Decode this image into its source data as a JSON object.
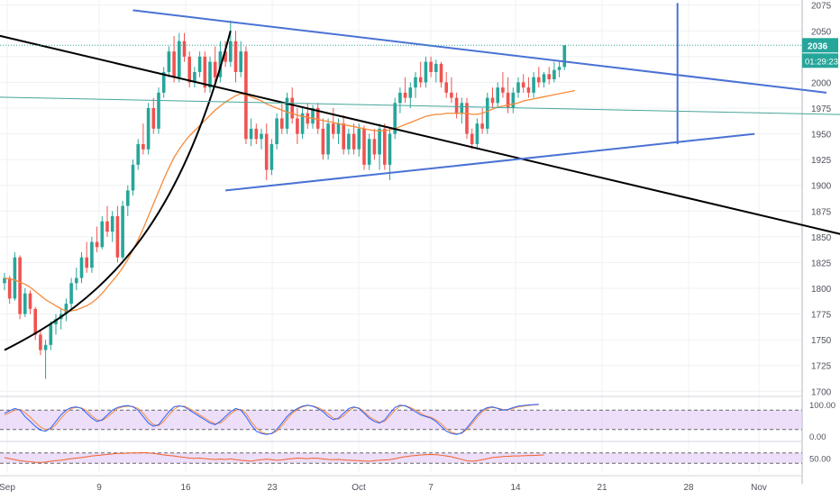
{
  "chart_data": {
    "type": "candlestick",
    "grid": true,
    "x_tick_labels": [
      "Sep",
      "9",
      "16",
      "23",
      "Oct",
      "7",
      "14",
      "21",
      "28",
      "Nov"
    ],
    "price_axis": {
      "ticks": [
        1700,
        1725,
        1750,
        1775,
        1800,
        1825,
        1850,
        1875,
        1900,
        1925,
        1950,
        1975,
        2000,
        2025,
        2050,
        2075
      ],
      "ylim": [
        1695,
        2080
      ],
      "current_price_label": "2036",
      "countdown_label": "01:29:23"
    },
    "candles_ohlc": [
      [
        1805,
        1815,
        1798,
        1810
      ],
      [
        1810,
        1812,
        1785,
        1790
      ],
      [
        1790,
        1835,
        1788,
        1830
      ],
      [
        1830,
        1832,
        1770,
        1775
      ],
      [
        1775,
        1800,
        1772,
        1795
      ],
      [
        1795,
        1798,
        1775,
        1780
      ],
      [
        1780,
        1782,
        1750,
        1755
      ],
      [
        1755,
        1760,
        1735,
        1740
      ],
      [
        1740,
        1750,
        1712,
        1745
      ],
      [
        1745,
        1768,
        1740,
        1765
      ],
      [
        1765,
        1775,
        1755,
        1770
      ],
      [
        1770,
        1780,
        1760,
        1775
      ],
      [
        1775,
        1790,
        1768,
        1785
      ],
      [
        1785,
        1810,
        1780,
        1805
      ],
      [
        1805,
        1820,
        1798,
        1810
      ],
      [
        1810,
        1835,
        1805,
        1830
      ],
      [
        1830,
        1845,
        1815,
        1820
      ],
      [
        1820,
        1850,
        1815,
        1845
      ],
      [
        1845,
        1860,
        1835,
        1840
      ],
      [
        1840,
        1870,
        1838,
        1865
      ],
      [
        1865,
        1880,
        1850,
        1855
      ],
      [
        1855,
        1875,
        1845,
        1870
      ],
      [
        1870,
        1880,
        1825,
        1830
      ],
      [
        1830,
        1885,
        1828,
        1880
      ],
      [
        1880,
        1900,
        1870,
        1895
      ],
      [
        1895,
        1925,
        1890,
        1920
      ],
      [
        1920,
        1945,
        1915,
        1940
      ],
      [
        1940,
        1960,
        1930,
        1935
      ],
      [
        1935,
        1980,
        1930,
        1975
      ],
      [
        1975,
        1985,
        1950,
        1955
      ],
      [
        1955,
        1995,
        1950,
        1990
      ],
      [
        1990,
        2015,
        1985,
        2010
      ],
      [
        2010,
        2035,
        2005,
        2030
      ],
      [
        2030,
        2045,
        2000,
        2005
      ],
      [
        2005,
        2048,
        2000,
        2040
      ],
      [
        2040,
        2048,
        2020,
        2025
      ],
      [
        2025,
        2030,
        1995,
        2000
      ],
      [
        2000,
        2015,
        1995,
        2010
      ],
      [
        2010,
        2030,
        2005,
        2025
      ],
      [
        2025,
        2030,
        1990,
        1995
      ],
      [
        1995,
        2025,
        1990,
        2020
      ],
      [
        2020,
        2035,
        2000,
        2005
      ],
      [
        2005,
        2040,
        2000,
        2030
      ],
      [
        2030,
        2040,
        2015,
        2020
      ],
      [
        2020,
        2060,
        2015,
        2040
      ],
      [
        2040,
        2050,
        2000,
        2010
      ],
      [
        2010,
        2040,
        2005,
        2030
      ],
      [
        2030,
        2035,
        1940,
        1945
      ],
      [
        1945,
        1965,
        1938,
        1955
      ],
      [
        1955,
        1960,
        1940,
        1945
      ],
      [
        1945,
        1955,
        1935,
        1950
      ],
      [
        1950,
        1960,
        1905,
        1915
      ],
      [
        1915,
        1945,
        1910,
        1940
      ],
      [
        1940,
        1970,
        1935,
        1965
      ],
      [
        1965,
        1980,
        1950,
        1955
      ],
      [
        1955,
        1990,
        1950,
        1985
      ],
      [
        1985,
        1995,
        1960,
        1965
      ],
      [
        1965,
        1975,
        1940,
        1950
      ],
      [
        1950,
        1975,
        1945,
        1970
      ],
      [
        1970,
        1980,
        1955,
        1960
      ],
      [
        1960,
        1978,
        1955,
        1975
      ],
      [
        1975,
        1980,
        1950,
        1955
      ],
      [
        1955,
        1965,
        1925,
        1930
      ],
      [
        1930,
        1965,
        1925,
        1960
      ],
      [
        1960,
        1975,
        1945,
        1950
      ],
      [
        1950,
        1965,
        1940,
        1960
      ],
      [
        1960,
        1968,
        1930,
        1935
      ],
      [
        1935,
        1955,
        1930,
        1950
      ],
      [
        1950,
        1960,
        1930,
        1935
      ],
      [
        1935,
        1960,
        1928,
        1955
      ],
      [
        1955,
        1958,
        1915,
        1920
      ],
      [
        1920,
        1950,
        1915,
        1945
      ],
      [
        1945,
        1955,
        1925,
        1930
      ],
      [
        1930,
        1960,
        1915,
        1955
      ],
      [
        1955,
        1960,
        1915,
        1920
      ],
      [
        1920,
        1955,
        1905,
        1950
      ],
      [
        1950,
        1985,
        1945,
        1980
      ],
      [
        1980,
        1995,
        1970,
        1990
      ],
      [
        1990,
        2005,
        1980,
        1985
      ],
      [
        1985,
        2000,
        1975,
        1995
      ],
      [
        1995,
        2010,
        1985,
        2005
      ],
      [
        2005,
        2020,
        1995,
        2000
      ],
      [
        2000,
        2025,
        1995,
        2020
      ],
      [
        2020,
        2025,
        2005,
        2010
      ],
      [
        2010,
        2022,
        2000,
        2018
      ],
      [
        2018,
        2020,
        1995,
        2000
      ],
      [
        2000,
        2010,
        1985,
        1990
      ],
      [
        1990,
        2005,
        1980,
        1985
      ],
      [
        1985,
        1990,
        1965,
        1970
      ],
      [
        1970,
        1985,
        1960,
        1980
      ],
      [
        1980,
        1985,
        1945,
        1950
      ],
      [
        1950,
        1955,
        1935,
        1940
      ],
      [
        1940,
        1965,
        1935,
        1960
      ],
      [
        1960,
        1975,
        1950,
        1955
      ],
      [
        1955,
        1990,
        1950,
        1985
      ],
      [
        1985,
        1995,
        1975,
        1980
      ],
      [
        1980,
        2000,
        1975,
        1995
      ],
      [
        1995,
        2010,
        1985,
        1990
      ],
      [
        1990,
        2005,
        1970,
        1975
      ],
      [
        1975,
        1995,
        1970,
        1990
      ],
      [
        1990,
        2005,
        1985,
        2000
      ],
      [
        2000,
        2008,
        1990,
        1995
      ],
      [
        1995,
        2005,
        1985,
        1990
      ],
      [
        1990,
        2010,
        1985,
        2005
      ],
      [
        2005,
        2015,
        1995,
        2000
      ],
      [
        2000,
        2010,
        1995,
        2008
      ],
      [
        2008,
        2015,
        1998,
        2003
      ],
      [
        2003,
        2020,
        2000,
        2012
      ],
      [
        2012,
        2020,
        2005,
        2015
      ],
      [
        2015,
        2036,
        2012,
        2036
      ]
    ],
    "moving_average": [
      1810,
      1809,
      1808,
      1806,
      1804,
      1801,
      1797,
      1793,
      1789,
      1786,
      1783,
      1780,
      1778,
      1778,
      1779,
      1781,
      1783,
      1786,
      1790,
      1795,
      1801,
      1807,
      1813,
      1820,
      1828,
      1837,
      1847,
      1858,
      1870,
      1882,
      1894,
      1906,
      1917,
      1927,
      1935,
      1942,
      1948,
      1953,
      1958,
      1963,
      1968,
      1973,
      1977,
      1981,
      1984,
      1987,
      1989,
      1988,
      1986,
      1984,
      1982,
      1979,
      1977,
      1975,
      1973,
      1971,
      1970,
      1968,
      1967,
      1966,
      1965,
      1964,
      1963,
      1962,
      1961,
      1960,
      1959,
      1958,
      1957,
      1956,
      1955,
      1954,
      1953,
      1953,
      1953,
      1954,
      1955,
      1957,
      1959,
      1961,
      1963,
      1965,
      1967,
      1968,
      1969,
      1969,
      1970,
      1970,
      1970,
      1970,
      1970,
      1969,
      1969,
      1970,
      1972,
      1974,
      1976,
      1977,
      1978,
      1979,
      1980,
      1982,
      1983,
      1984,
      1985,
      1986,
      1987,
      1988,
      1989,
      1990,
      1991,
      1992
    ],
    "indicators": [
      {
        "type": "stochastic",
        "axis_labels": [
          "100.00",
          "0.00"
        ],
        "levels": [
          80,
          20
        ],
        "k": [
          70,
          78,
          85,
          80,
          60,
          45,
          30,
          18,
          15,
          25,
          45,
          65,
          80,
          88,
          90,
          85,
          70,
          55,
          45,
          50,
          65,
          80,
          88,
          92,
          94,
          90,
          80,
          60,
          40,
          30,
          35,
          55,
          75,
          90,
          93,
          90,
          80,
          70,
          60,
          50,
          40,
          35,
          45,
          60,
          75,
          85,
          80,
          60,
          35,
          15,
          8,
          5,
          8,
          20,
          40,
          60,
          75,
          85,
          92,
          95,
          92,
          85,
          75,
          60,
          50,
          55,
          70,
          85,
          90,
          85,
          70,
          55,
          45,
          40,
          50,
          70,
          88,
          95,
          93,
          85,
          75,
          65,
          60,
          55,
          45,
          30,
          15,
          8,
          5,
          10,
          25,
          45,
          65,
          80,
          88,
          90,
          85,
          80,
          82,
          88,
          92,
          94,
          96,
          97,
          98
        ],
        "d": [
          65,
          72,
          80,
          82,
          72,
          58,
          42,
          28,
          20,
          22,
          35,
          55,
          72,
          85,
          88,
          87,
          78,
          62,
          50,
          48,
          58,
          72,
          85,
          90,
          92,
          91,
          85,
          70,
          50,
          35,
          32,
          45,
          65,
          82,
          92,
          92,
          85,
          75,
          65,
          55,
          45,
          38,
          40,
          52,
          68,
          80,
          82,
          70,
          45,
          25,
          12,
          7,
          7,
          15,
          32,
          52,
          70,
          82,
          90,
          94,
          93,
          88,
          80,
          68,
          55,
          52,
          62,
          78,
          88,
          87,
          75,
          60,
          50,
          42,
          45,
          62,
          80,
          92,
          94,
          88,
          80,
          70,
          62,
          58,
          50,
          38,
          22,
          12,
          7,
          8,
          20,
          38,
          58,
          75,
          85,
          88,
          86,
          82,
          81,
          85,
          90,
          92,
          94,
          96,
          97
        ]
      },
      {
        "type": "oscillator",
        "axis_labels": [
          "50.00"
        ],
        "values": [
          52,
          48,
          44,
          40,
          38,
          36,
          34,
          33,
          35,
          38,
          40,
          42,
          45,
          48,
          50,
          52,
          55,
          58,
          60,
          62,
          64,
          66,
          68,
          68,
          69,
          70,
          70,
          71,
          70,
          68,
          65,
          62,
          60,
          58,
          55,
          53,
          50,
          49,
          50,
          48,
          46,
          45,
          46,
          45,
          47,
          44,
          42,
          40,
          38,
          42,
          44,
          46,
          44,
          42,
          43,
          46,
          48,
          50,
          49,
          48,
          50,
          49,
          47,
          45,
          44,
          45,
          43,
          42,
          41,
          40,
          39,
          38,
          40,
          42,
          43,
          44,
          48,
          52,
          55,
          58,
          60,
          62,
          63,
          64,
          63,
          61,
          58,
          55,
          50,
          45,
          40,
          38,
          40,
          44,
          48,
          52,
          54,
          56,
          57,
          58,
          58,
          59,
          60,
          60,
          61,
          62
        ]
      }
    ],
    "trendlines": [
      {
        "color": "#000000",
        "points": [
          [
            -5,
            2050
          ],
          [
            165,
            1850
          ]
        ]
      },
      {
        "color": "#000000",
        "style": "curve",
        "points": [
          [
            0,
            1740
          ],
          [
            20,
            1790
          ],
          [
            34,
            1860
          ],
          [
            44,
            2050
          ]
        ]
      },
      {
        "color": "#4a72d4",
        "points": [
          [
            25,
            2070
          ],
          [
            160,
            1990
          ]
        ]
      },
      {
        "color": "#4a72d4",
        "points": [
          [
            43,
            1895
          ],
          [
            146,
            1950
          ]
        ]
      },
      {
        "color": "#4a72d4",
        "points": [
          [
            131,
            2077
          ],
          [
            131,
            1940
          ]
        ]
      },
      {
        "color": "#46a59a",
        "points": [
          [
            -5,
            1986
          ],
          [
            170,
            1968
          ]
        ]
      }
    ]
  }
}
